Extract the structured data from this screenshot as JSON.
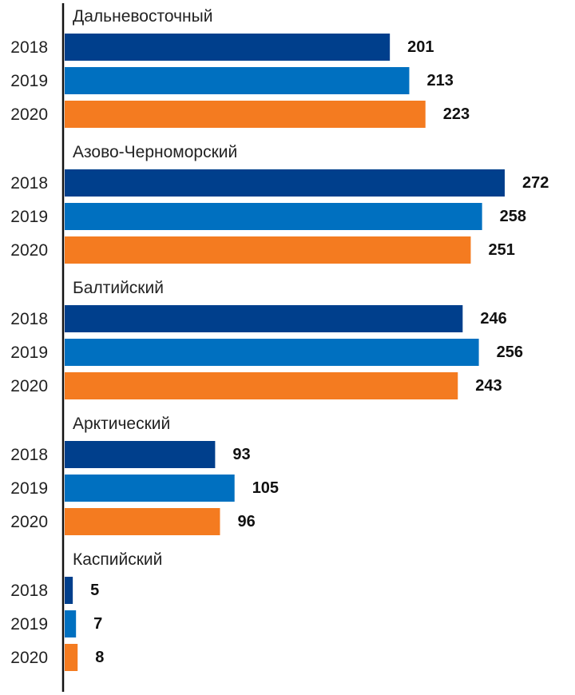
{
  "chart_data": {
    "type": "bar",
    "orientation": "horizontal",
    "title": "",
    "xlabel": "",
    "ylabel": "",
    "grid": false,
    "legend": "none",
    "xlim": [
      0,
      272
    ],
    "groups": [
      {
        "label": "Дальневосточный",
        "bars": [
          {
            "year": "2018",
            "value": 201,
            "value_label": "201"
          },
          {
            "year": "2019",
            "value": 213,
            "value_label": "213"
          },
          {
            "year": "2020",
            "value": 223,
            "value_label": "223"
          }
        ]
      },
      {
        "label": "Азово-Черноморский",
        "bars": [
          {
            "year": "2018",
            "value": 272,
            "value_label": "272"
          },
          {
            "year": "2019",
            "value": 258,
            "value_label": "258"
          },
          {
            "year": "2020",
            "value": 251,
            "value_label": "251"
          }
        ]
      },
      {
        "label": "Балтийский",
        "bars": [
          {
            "year": "2018",
            "value": 246,
            "value_label": "246"
          },
          {
            "year": "2019",
            "value": 256,
            "value_label": "256"
          },
          {
            "year": "2020",
            "value": 243,
            "value_label": "243"
          }
        ]
      },
      {
        "label": "Арктический",
        "bars": [
          {
            "year": "2018",
            "value": 93,
            "value_label": "93"
          },
          {
            "year": "2019",
            "value": 105,
            "value_label": "105"
          },
          {
            "year": "2020",
            "value": 96,
            "value_label": "96"
          }
        ]
      },
      {
        "label": "Каспийский",
        "bars": [
          {
            "year": "2018",
            "value": 5,
            "value_label": "5"
          },
          {
            "year": "2019",
            "value": 7,
            "value_label": "7"
          },
          {
            "year": "2020",
            "value": 8,
            "value_label": "8"
          }
        ]
      }
    ],
    "year_colors": {
      "2018": "#003f8c",
      "2019": "#0070c0",
      "2020": "#f47b20"
    },
    "axis_color": "#111111"
  }
}
